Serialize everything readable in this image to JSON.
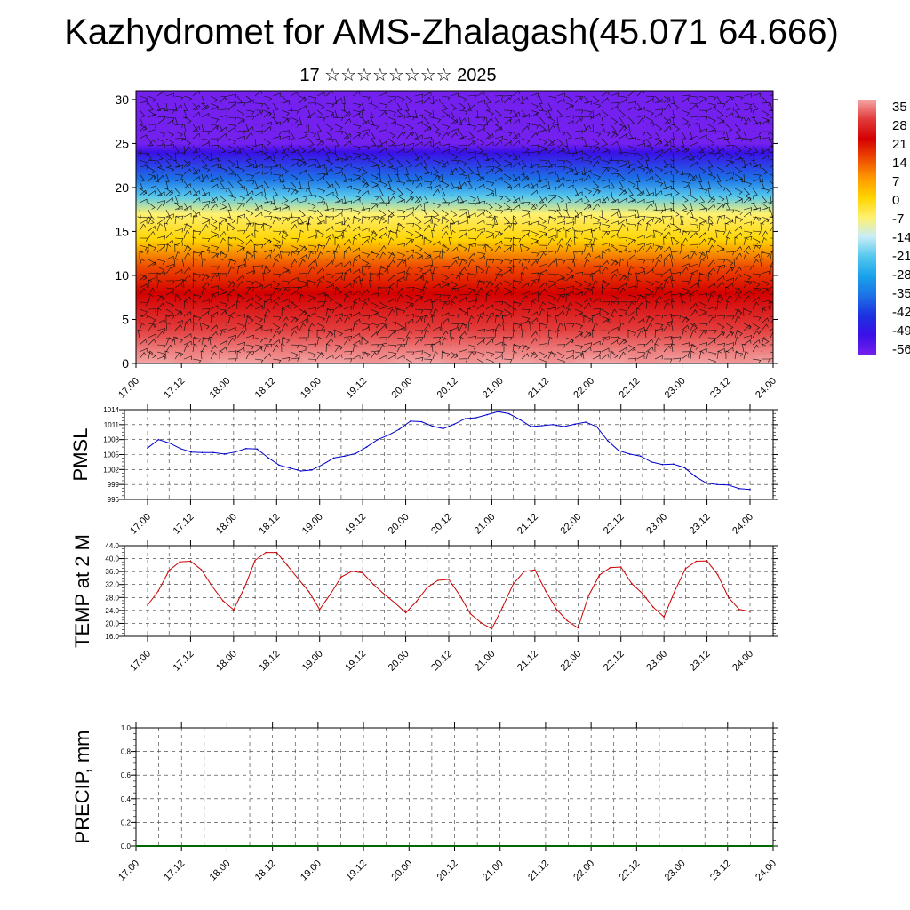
{
  "header": {
    "title": "Kazhydromet for AMS-Zhalagash(45.071 64.666)",
    "subtitle": "17 ☆☆☆☆☆☆☆☆ 2025"
  },
  "colors": {
    "pmsl_line": "#0000cc",
    "temp_line": "#cc0000",
    "precip_line": "#006600"
  },
  "chart_data": [
    {
      "type": "heatmap",
      "name": "temperature-wind-cross-section",
      "x_ticks": [
        "17.00",
        "17.12",
        "18.00",
        "18.12",
        "19.00",
        "19.12",
        "20.00",
        "20.12",
        "21.00",
        "21.12",
        "22.00",
        "22.12",
        "23.00",
        "23.12",
        "24.00"
      ],
      "y_ticks": [
        0,
        5,
        10,
        15,
        20,
        25,
        30
      ],
      "ylim": [
        0,
        31
      ],
      "overlay": "wind barbs",
      "colorbar_labels": [
        "35",
        "28",
        "21",
        "14",
        "7",
        "0",
        "-7",
        "-14",
        "-21",
        "-28",
        "-35",
        "-42",
        "-49",
        "-56"
      ],
      "colorbar_colors": [
        "#f4a6a6",
        "#e23a3a",
        "#d40000",
        "#ee4a00",
        "#ff9a00",
        "#ffd400",
        "#fff170",
        "#c8ecf8",
        "#55c8ee",
        "#1aa2ea",
        "#1c72e6",
        "#1c32e0",
        "#3a10e6",
        "#7420ee"
      ],
      "levels": [
        {
          "height": 0,
          "temp": 33
        },
        {
          "height": 4,
          "temp": 28
        },
        {
          "height": 8,
          "temp": 22
        },
        {
          "height": 11,
          "temp": 12
        },
        {
          "height": 14,
          "temp": 0
        },
        {
          "height": 17,
          "temp": -10
        },
        {
          "height": 19,
          "temp": -24
        },
        {
          "height": 21,
          "temp": -36
        },
        {
          "height": 24,
          "temp": -50
        },
        {
          "height": 25,
          "temp": -54
        },
        {
          "height": 27,
          "temp": -60
        },
        {
          "height": 31,
          "temp": -63
        }
      ]
    },
    {
      "type": "line",
      "name": "pmsl",
      "ylabel": "PMSL",
      "y_ticks": [
        996,
        999,
        1002,
        1005,
        1008,
        1011,
        1014
      ],
      "ylim": [
        996,
        1014
      ],
      "x_ticks": [
        "17.00",
        "17.12",
        "18.00",
        "18.12",
        "19.00",
        "19.12",
        "20.00",
        "20.12",
        "21.00",
        "21.12",
        "22.00",
        "22.12",
        "23.00",
        "23.12",
        "24.00"
      ],
      "x_step_hours": 3,
      "values": [
        1006.3,
        1008.0,
        1007.3,
        1006.2,
        1005.5,
        1005.4,
        1005.4,
        1005.1,
        1005.5,
        1006.2,
        1006.1,
        1004.4,
        1002.9,
        1002.3,
        1001.7,
        1001.9,
        1003.0,
        1004.3,
        1004.7,
        1005.2,
        1006.5,
        1008.0,
        1008.9,
        1010.1,
        1011.7,
        1011.6,
        1010.7,
        1010.2,
        1011.1,
        1012.2,
        1012.4,
        1013.0,
        1013.6,
        1013.2,
        1012.0,
        1010.6,
        1010.8,
        1011.0,
        1010.6,
        1011.1,
        1011.5,
        1010.6,
        1007.8,
        1005.8,
        1005.1,
        1004.7,
        1003.5,
        1003.0,
        1003.1,
        1002.4,
        1000.6,
        999.3,
        999.0,
        998.9,
        998.2,
        998.0
      ]
    },
    {
      "type": "line",
      "name": "temp-2m",
      "ylabel": "TEMP at 2 M",
      "y_ticks": [
        "16.0",
        "20.0",
        "24.0",
        "28.0",
        "32.0",
        "36.0",
        "40.0",
        "44.0"
      ],
      "ylim": [
        16,
        44
      ],
      "x_ticks": [
        "17.00",
        "17.12",
        "18.00",
        "18.12",
        "19.00",
        "19.12",
        "20.00",
        "20.12",
        "21.00",
        "21.12",
        "22.00",
        "22.12",
        "23.00",
        "23.12",
        "24.00"
      ],
      "x_step_hours": 3,
      "values": [
        25.6,
        30.0,
        36.3,
        39.0,
        39.2,
        36.6,
        31.5,
        27.0,
        24.2,
        31.0,
        39.5,
        41.9,
        41.9,
        37.9,
        33.8,
        29.8,
        24.3,
        29.0,
        34.3,
        36.1,
        35.6,
        32.0,
        29.0,
        26.3,
        23.3,
        26.8,
        31.1,
        33.3,
        33.6,
        28.8,
        23.0,
        20.2,
        18.3,
        25.0,
        32.2,
        36.0,
        36.5,
        30.0,
        24.4,
        20.8,
        18.6,
        28.6,
        34.9,
        37.2,
        37.4,
        32.3,
        29.2,
        25.0,
        22.0,
        30.0,
        36.9,
        39.2,
        39.3,
        35.0,
        28.0,
        24.3,
        23.7
      ]
    },
    {
      "type": "line",
      "name": "precip",
      "ylabel": "PRECIP, mm",
      "y_ticks": [
        "0.0",
        "0.2",
        "0.4",
        "0.6",
        "0.8",
        "1.0"
      ],
      "ylim": [
        0,
        1
      ],
      "x_ticks": [
        "17.00",
        "17.12",
        "18.00",
        "18.12",
        "19.00",
        "19.12",
        "20.00",
        "20.12",
        "21.00",
        "21.12",
        "22.00",
        "22.12",
        "23.00",
        "23.12",
        "24.00"
      ],
      "values": [
        0,
        0,
        0,
        0,
        0,
        0,
        0,
        0,
        0,
        0,
        0,
        0,
        0,
        0,
        0
      ]
    }
  ]
}
